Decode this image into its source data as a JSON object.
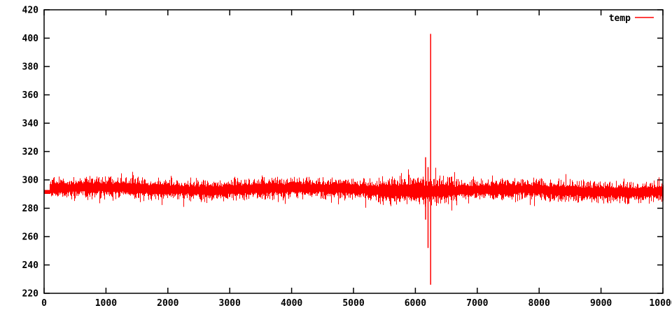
{
  "chart_data": {
    "type": "line",
    "title": "",
    "xlabel": "",
    "ylabel": "",
    "xlim": [
      0,
      10000
    ],
    "ylim": [
      220,
      420
    ],
    "x_ticks": [
      0,
      1000,
      2000,
      3000,
      4000,
      5000,
      6000,
      7000,
      8000,
      9000,
      10000
    ],
    "y_ticks": [
      220,
      240,
      260,
      280,
      300,
      320,
      340,
      360,
      380,
      400,
      420
    ],
    "grid": false,
    "legend": {
      "label": "temp",
      "position": "top-right",
      "sample_color": "#ff0000"
    },
    "series": [
      {
        "name": "temp",
        "color": "#ff0000",
        "description": "Dense noisy temperature trace spanning x=0..10000, mean ~293, typical band 288-300, excursions 277-307, with a brief flat start at ~291.5 and a large transient near x=6250.",
        "baseline_mean": 293,
        "noise_band": [
          283,
          303
        ],
        "noise_extremes": [
          277,
          307
        ],
        "start_flat": {
          "from_x": 0,
          "to_x": 90,
          "value": 291.5
        },
        "amplified_zone": {
          "from_x": 5400,
          "to_x": 6600,
          "factor": 1.3
        },
        "anomaly_spikes": [
          {
            "x": 6165,
            "min": 272,
            "max": 316
          },
          {
            "x": 6205,
            "min": 252,
            "max": 309
          },
          {
            "x": 6247,
            "min": 226,
            "max": 403
          }
        ],
        "render_seed": 1337
      }
    ]
  },
  "frame": {
    "background": "#ffffff",
    "border_color": "#000000",
    "tick_color": "#000000",
    "label_color": "#000000"
  }
}
